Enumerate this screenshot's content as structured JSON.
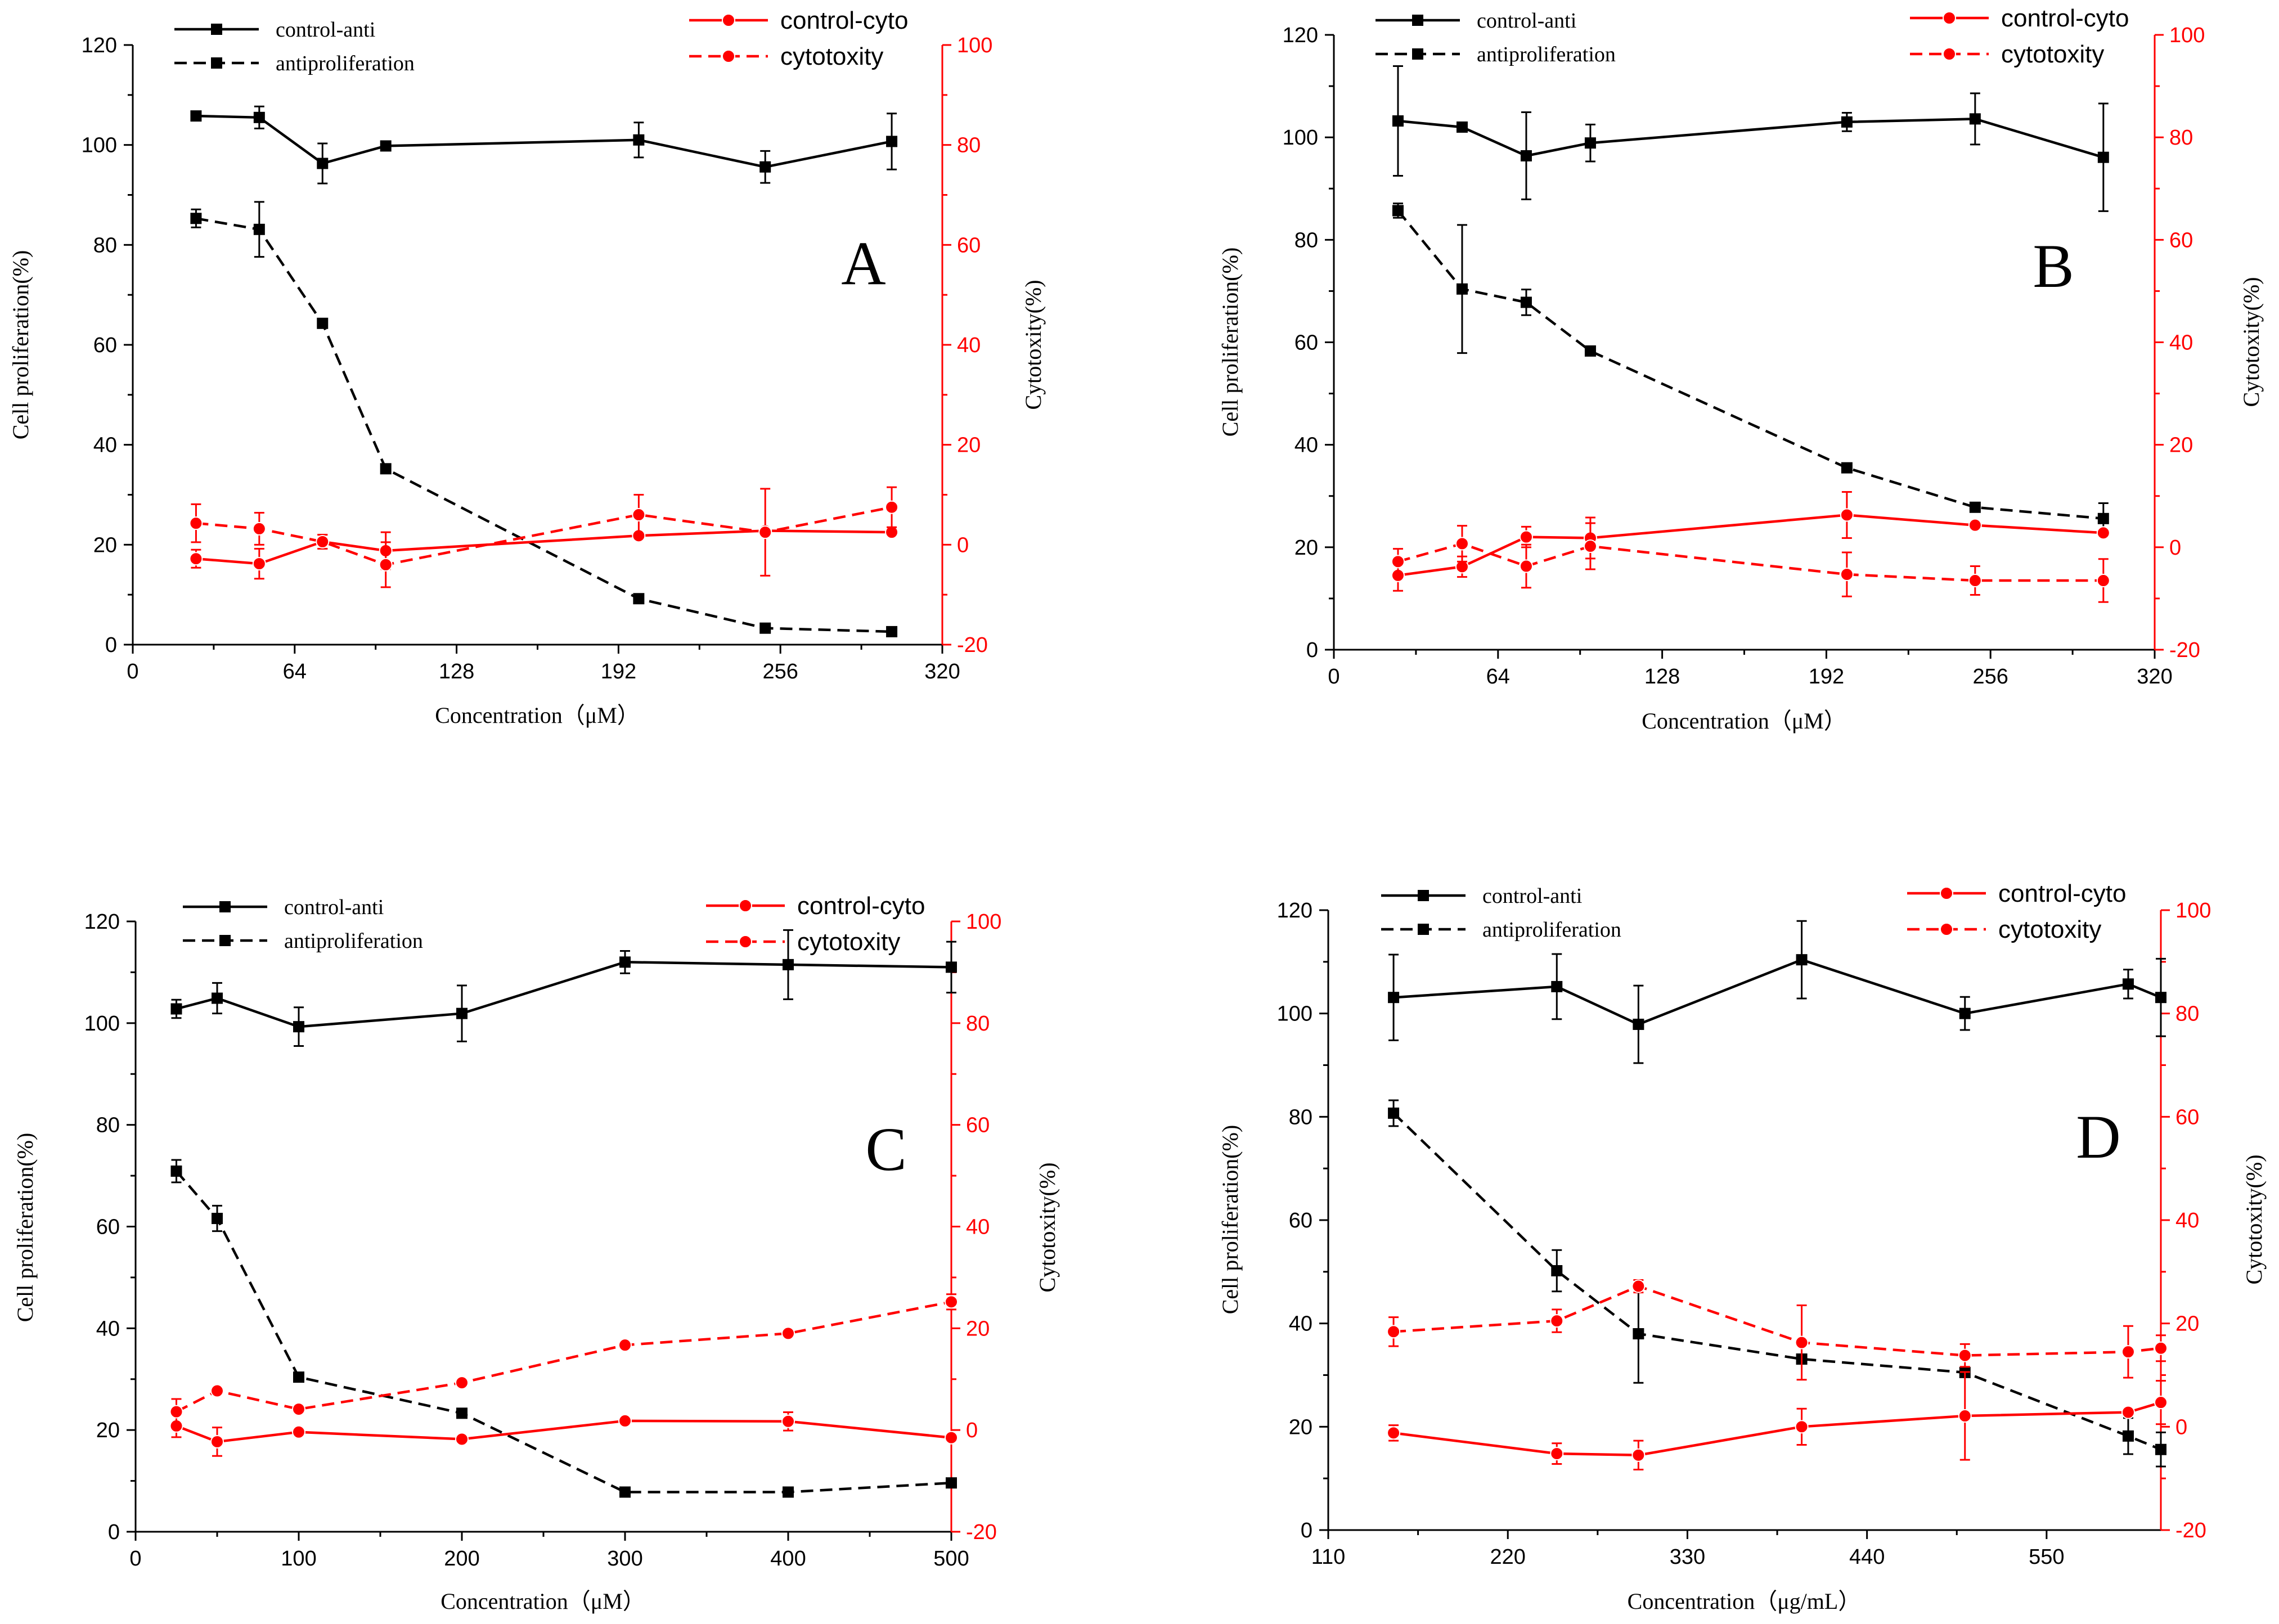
{
  "colors": {
    "black": "#000000",
    "red": "#ff0000",
    "background": "#ffffff"
  },
  "chart_data": [
    {
      "type": "line",
      "panel_label": "A",
      "xlabel": "Concentration（μM）",
      "ylabel": "Cell proliferation(%)",
      "y2label": "Cytotoxity(%)",
      "xlim": [
        0,
        320
      ],
      "xticks": [
        0,
        64,
        128,
        192,
        256,
        320
      ],
      "ylim": [
        0,
        120
      ],
      "yticks": [
        0,
        20,
        40,
        60,
        80,
        100,
        120
      ],
      "y2lim": [
        -20,
        100
      ],
      "y2ticks": [
        -20,
        0,
        20,
        40,
        60,
        80,
        100
      ],
      "series": [
        {
          "name": "control-anti",
          "axis": "left",
          "style": "solid",
          "marker": "square",
          "color": "#000000",
          "x": [
            25,
            50,
            75,
            100,
            200,
            250,
            300
          ],
          "values": [
            105.8,
            105.5,
            96.3,
            99.8,
            101,
            95.6,
            100.7
          ],
          "err": [
            0,
            2.2,
            4,
            0.6,
            3.5,
            3.2,
            5.6
          ]
        },
        {
          "name": "antiproliferation",
          "axis": "left",
          "style": "dashed",
          "marker": "square",
          "color": "#000000",
          "x": [
            25,
            50,
            75,
            100,
            200,
            250,
            300
          ],
          "values": [
            85.3,
            83.1,
            64.3,
            35.2,
            9.2,
            3.3,
            2.6
          ],
          "err": [
            1.8,
            5.5,
            0,
            0,
            0,
            0,
            0
          ]
        },
        {
          "name": "control-cyto",
          "axis": "right",
          "style": "solid",
          "marker": "circle",
          "color": "#ff0000",
          "x": [
            25,
            50,
            75,
            100,
            200,
            250,
            300
          ],
          "values": [
            -2.8,
            -3.8,
            0.6,
            -1.2,
            1.8,
            2.8,
            2.5
          ],
          "err": [
            1.8,
            3,
            1.4,
            3.7,
            0,
            0,
            0
          ]
        },
        {
          "name": "cytotoxity",
          "axis": "right",
          "style": "dashed",
          "marker": "circle",
          "color": "#ff0000",
          "x": [
            25,
            50,
            75,
            100,
            200,
            250,
            300
          ],
          "values": [
            4.3,
            3.2,
            0.6,
            -4,
            6,
            2.5,
            7.5
          ],
          "err": [
            3.8,
            3.2,
            1.4,
            4.5,
            4,
            8.7,
            4
          ]
        }
      ],
      "legend_left": [
        "control-anti",
        "antiproliferation"
      ],
      "legend_right": [
        "control-cyto",
        "cytotoxity"
      ]
    },
    {
      "type": "line",
      "panel_label": "B",
      "xlabel": "Concentration（μM）",
      "ylabel": "Cell proliferation(%)",
      "y2label": "Cytotoxity(%)",
      "xlim": [
        0,
        320
      ],
      "xticks": [
        0,
        64,
        128,
        192,
        256,
        320
      ],
      "ylim": [
        0,
        120
      ],
      "yticks": [
        0,
        20,
        40,
        60,
        80,
        100,
        120
      ],
      "y2lim": [
        -20,
        100
      ],
      "y2ticks": [
        -20,
        0,
        20,
        40,
        60,
        80,
        100
      ],
      "series": [
        {
          "name": "control-anti",
          "axis": "left",
          "style": "solid",
          "marker": "square",
          "color": "#000000",
          "x": [
            25,
            50,
            75,
            100,
            200,
            250,
            300
          ],
          "values": [
            103.2,
            102,
            96.4,
            98.9,
            103,
            103.6,
            96.1
          ],
          "err": [
            10.7,
            0.6,
            8.5,
            3.6,
            1.8,
            5,
            10.5
          ]
        },
        {
          "name": "antiproliferation",
          "axis": "left",
          "style": "dashed",
          "marker": "square",
          "color": "#000000",
          "x": [
            25,
            50,
            75,
            100,
            200,
            250,
            300
          ],
          "values": [
            85.7,
            70.4,
            67.8,
            58.3,
            35.5,
            27.8,
            25.6
          ],
          "err": [
            1.4,
            12.5,
            2.5,
            0,
            0,
            0,
            3
          ]
        },
        {
          "name": "control-cyto",
          "axis": "right",
          "style": "solid",
          "marker": "circle",
          "color": "#ff0000",
          "x": [
            25,
            50,
            75,
            100,
            200,
            250,
            300
          ],
          "values": [
            -5.5,
            -3.8,
            2,
            1.8,
            6.3,
            4.3,
            2.8
          ],
          "err": [
            3,
            2,
            2,
            4,
            4.5,
            0,
            0
          ]
        },
        {
          "name": "cytotoxity",
          "axis": "right",
          "style": "dashed",
          "marker": "circle",
          "color": "#ff0000",
          "x": [
            25,
            50,
            75,
            100,
            200,
            250,
            300
          ],
          "values": [
            -2.8,
            0.7,
            -3.7,
            0.2,
            -5.3,
            -6.5,
            -6.5
          ],
          "err": [
            2.5,
            3.5,
            4.2,
            4.5,
            4.3,
            2.8,
            4.2
          ]
        }
      ],
      "legend_left": [
        "control-anti",
        "antiproliferation"
      ],
      "legend_right": [
        "control-cyto",
        "cytotoxity"
      ]
    },
    {
      "type": "line",
      "panel_label": "C",
      "xlabel": "Concentration（μM）",
      "ylabel": "Cell proliferation(%)",
      "y2label": "Cytotoxity(%)",
      "xlim": [
        0,
        500
      ],
      "xticks": [
        0,
        100,
        200,
        300,
        400,
        500
      ],
      "ylim": [
        0,
        120
      ],
      "yticks": [
        0,
        20,
        40,
        60,
        80,
        100,
        120
      ],
      "y2lim": [
        -20,
        100
      ],
      "y2ticks": [
        -20,
        0,
        20,
        40,
        60,
        80,
        100
      ],
      "series": [
        {
          "name": "control-anti",
          "axis": "left",
          "style": "solid",
          "marker": "square",
          "color": "#000000",
          "x": [
            25,
            50,
            100,
            200,
            300,
            400,
            500
          ],
          "values": [
            102.8,
            104.9,
            99.3,
            101.9,
            112,
            111.5,
            111
          ],
          "err": [
            1.8,
            3,
            3.8,
            5.5,
            2.2,
            6.8,
            5
          ]
        },
        {
          "name": "antiproliferation",
          "axis": "left",
          "style": "dashed",
          "marker": "square",
          "color": "#000000",
          "x": [
            25,
            50,
            100,
            200,
            300,
            400,
            500
          ],
          "values": [
            70.9,
            61.6,
            30.4,
            23.3,
            7.8,
            7.8,
            9.6
          ],
          "err": [
            2.2,
            2.5,
            0,
            0,
            0,
            0,
            0
          ]
        },
        {
          "name": "control-cyto",
          "axis": "right",
          "style": "solid",
          "marker": "circle",
          "color": "#ff0000",
          "x": [
            25,
            50,
            100,
            200,
            300,
            400,
            500
          ],
          "values": [
            0.8,
            -2.3,
            -0.4,
            -1.8,
            1.8,
            1.7,
            -1.5
          ],
          "err": [
            2.2,
            2.8,
            0,
            0,
            0,
            1.8,
            0
          ]
        },
        {
          "name": "cytotoxity",
          "axis": "right",
          "style": "dashed",
          "marker": "circle",
          "color": "#ff0000",
          "x": [
            25,
            50,
            100,
            200,
            300,
            400,
            500
          ],
          "values": [
            3.6,
            7.7,
            4.1,
            9.3,
            16.7,
            19,
            25.2
          ],
          "err": [
            2.5,
            0,
            0,
            0,
            0,
            0,
            1.5
          ]
        }
      ],
      "legend_left": [
        "control-anti",
        "antiproliferation"
      ],
      "legend_right": [
        "control-cyto",
        "cytotoxity"
      ]
    },
    {
      "type": "line",
      "panel_label": "D",
      "xlabel": "Concentration（μg/mL）",
      "ylabel": "Cell proliferation(%)",
      "y2label": "Cytotoxity(%)",
      "xlim": [
        110,
        620
      ],
      "xticks": [
        110,
        220,
        330,
        440,
        550
      ],
      "ylim": [
        0,
        120
      ],
      "yticks": [
        0,
        20,
        40,
        60,
        80,
        100,
        120
      ],
      "y2lim": [
        -20,
        100
      ],
      "y2ticks": [
        -20,
        0,
        20,
        40,
        60,
        80,
        100
      ],
      "series": [
        {
          "name": "control-anti",
          "axis": "left",
          "style": "solid",
          "marker": "square",
          "color": "#000000",
          "x": [
            150,
            250,
            300,
            400,
            500,
            600,
            620
          ],
          "values": [
            103.1,
            105.2,
            97.9,
            110.4,
            100,
            105.7,
            103.1
          ],
          "err": [
            8.3,
            6.3,
            7.5,
            7.5,
            3.2,
            2.8,
            7.5
          ]
        },
        {
          "name": "antiproliferation",
          "axis": "left",
          "style": "dashed",
          "marker": "square",
          "color": "#000000",
          "x": [
            150,
            250,
            300,
            400,
            500,
            600,
            620
          ],
          "values": [
            80.7,
            50.2,
            38,
            33.1,
            30.5,
            18.2,
            15.6
          ],
          "err": [
            2.5,
            4,
            9.5,
            0,
            0,
            3.5,
            3.3
          ]
        },
        {
          "name": "control-cyto",
          "axis": "right",
          "style": "solid",
          "marker": "circle",
          "color": "#ff0000",
          "x": [
            150,
            250,
            300,
            400,
            500,
            600,
            620
          ],
          "values": [
            -1.2,
            -5.2,
            -5.5,
            0,
            2.1,
            2.8,
            4.7
          ],
          "err": [
            1.5,
            2,
            2.8,
            3.5,
            8.5,
            0,
            4.2
          ]
        },
        {
          "name": "cytotoxity",
          "axis": "right",
          "style": "dashed",
          "marker": "circle",
          "color": "#ff0000",
          "x": [
            150,
            250,
            300,
            400,
            500,
            600,
            620
          ],
          "values": [
            18.4,
            20.5,
            27.2,
            16.3,
            13.8,
            14.5,
            15.2
          ],
          "err": [
            2.8,
            2.2,
            1.2,
            7.2,
            2.2,
            5,
            2.5
          ]
        }
      ],
      "legend_left": [
        "control-anti",
        "antiproliferation"
      ],
      "legend_right": [
        "control-cyto",
        "cytotoxity"
      ]
    }
  ]
}
